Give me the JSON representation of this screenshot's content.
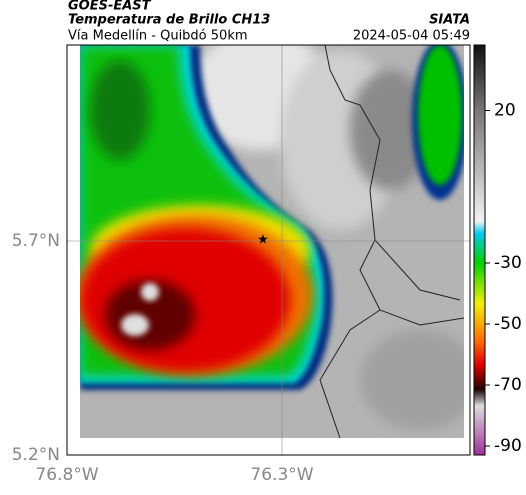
{
  "header": {
    "product": "GOES-EAST",
    "title": "Temperatura de Brillo CH13",
    "source": "SIATA",
    "subtitle": "Vía Medellín - Quibdó 50km",
    "timestamp": "2024-05-04 05:49"
  },
  "map": {
    "lat_ticks": [
      "5.7°N",
      "5.2°N"
    ],
    "lon_ticks": [
      "76.8°W",
      "76.3°W"
    ]
  },
  "colorbar": {
    "ticks": [
      20,
      -30,
      -50,
      -70,
      -90
    ]
  }
}
